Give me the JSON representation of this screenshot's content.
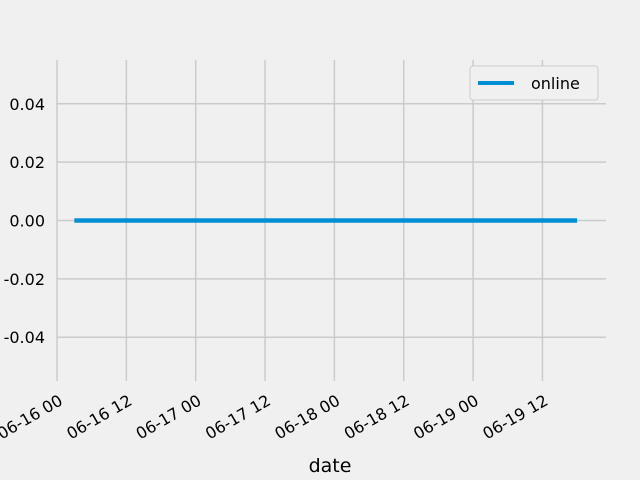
{
  "chart_data": {
    "type": "line",
    "title": "",
    "xlabel": "date",
    "ylabel": "",
    "x_ticks": [
      "06-16 00",
      "06-16 12",
      "06-17 00",
      "06-17 12",
      "06-18 00",
      "06-18 12",
      "06-19 00",
      "06-19 12"
    ],
    "y_ticks": [
      "-0.04",
      "-0.02",
      "0.00",
      "0.02",
      "0.04"
    ],
    "xlim": [
      "2023-06-16 00:00",
      "2023-06-19 23:00"
    ],
    "ylim": [
      -0.055,
      0.055
    ],
    "grid": true,
    "legend_position": "upper right",
    "series": [
      {
        "name": "online",
        "color": "#008fd5",
        "x": [
          "2023-06-16 03:00",
          "2023-06-19 18:00"
        ],
        "y": [
          0.0,
          0.0
        ]
      }
    ]
  }
}
